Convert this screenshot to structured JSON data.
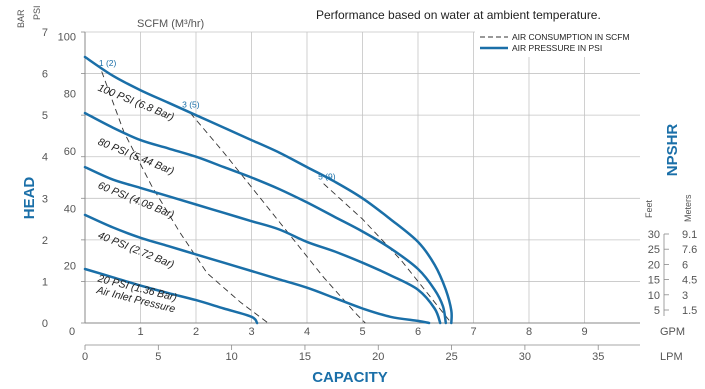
{
  "chart_data": {
    "type": "line",
    "note": "Performance based on water at ambient temperature.",
    "xlabel": "CAPACITY",
    "ylabel": "HEAD",
    "right_label": "NPSHR",
    "scfm_label": "SCFM (M³/hr)",
    "head_units": [
      "BAR",
      "PSI"
    ],
    "x_gpm": {
      "unit": "GPM",
      "range": [
        0,
        10
      ],
      "ticks": [
        "0",
        "1",
        "2",
        "3",
        "4",
        "5",
        "6",
        "7",
        "8",
        "9"
      ]
    },
    "x_lpm": {
      "unit": "LPM",
      "range": [
        0,
        37.85
      ],
      "ticks": [
        "0",
        "5",
        "10",
        "15",
        "20",
        "25",
        "30",
        "35"
      ]
    },
    "y_bar": {
      "unit": "BAR",
      "range": [
        0,
        7
      ],
      "ticks": [
        "0",
        "1",
        "2",
        "3",
        "4",
        "5",
        "6",
        "7"
      ]
    },
    "y_psi": {
      "unit": "PSI",
      "range": [
        0,
        101.5
      ],
      "ticks": [
        "20",
        "40",
        "60",
        "80",
        "100"
      ]
    },
    "npshr": {
      "headers": [
        "Feet",
        "Meters"
      ],
      "rows": [
        [
          "30",
          "9.1"
        ],
        [
          "25",
          "7.6"
        ],
        [
          "20",
          "6"
        ],
        [
          "15",
          "4.5"
        ],
        [
          "10",
          "3"
        ],
        [
          "5",
          "1.5"
        ]
      ]
    },
    "legend": [
      {
        "name": "AIR CONSUMPTION IN SCFM",
        "style": "dashed"
      },
      {
        "name": "AIR PRESSURE IN PSI",
        "style": "solid"
      }
    ],
    "series": [
      {
        "name": "100 PSI (6.8 Bar)",
        "points": [
          [
            0,
            6.4
          ],
          [
            0.5,
            5.95
          ],
          [
            1,
            5.6
          ],
          [
            1.5,
            5.3
          ],
          [
            2,
            5.0
          ],
          [
            2.5,
            4.7
          ],
          [
            3,
            4.4
          ],
          [
            3.5,
            4.1
          ],
          [
            4,
            3.75
          ],
          [
            4.5,
            3.4
          ],
          [
            5,
            3.0
          ],
          [
            5.5,
            2.5
          ],
          [
            6,
            1.95
          ],
          [
            6.3,
            1.4
          ],
          [
            6.5,
            0.8
          ],
          [
            6.6,
            0.3
          ],
          [
            6.6,
            0
          ]
        ]
      },
      {
        "name": "80 PSI (5.44 Bar)",
        "points": [
          [
            0,
            5.05
          ],
          [
            0.5,
            4.7
          ],
          [
            1,
            4.4
          ],
          [
            1.5,
            4.2
          ],
          [
            2,
            4.0
          ],
          [
            2.5,
            3.75
          ],
          [
            3,
            3.5
          ],
          [
            3.5,
            3.22
          ],
          [
            4,
            2.9
          ],
          [
            4.5,
            2.55
          ],
          [
            5,
            2.2
          ],
          [
            5.5,
            1.8
          ],
          [
            6,
            1.3
          ],
          [
            6.3,
            0.8
          ],
          [
            6.45,
            0.4
          ],
          [
            6.5,
            0
          ]
        ]
      },
      {
        "name": "60 PSI (4.08 Bar)",
        "points": [
          [
            0,
            3.75
          ],
          [
            0.5,
            3.45
          ],
          [
            1,
            3.25
          ],
          [
            1.5,
            3.05
          ],
          [
            2,
            2.85
          ],
          [
            2.5,
            2.65
          ],
          [
            3,
            2.45
          ],
          [
            3.5,
            2.25
          ],
          [
            4,
            1.95
          ],
          [
            4.5,
            1.72
          ],
          [
            5,
            1.45
          ],
          [
            5.5,
            1.15
          ],
          [
            6,
            0.8
          ],
          [
            6.3,
            0.35
          ],
          [
            6.4,
            0
          ]
        ]
      },
      {
        "name": "40 PSI (2.72 Bar)",
        "points": [
          [
            0,
            2.6
          ],
          [
            0.5,
            2.3
          ],
          [
            1,
            2.05
          ],
          [
            1.5,
            1.85
          ],
          [
            2,
            1.65
          ],
          [
            2.5,
            1.45
          ],
          [
            3,
            1.25
          ],
          [
            3.5,
            1.05
          ],
          [
            4,
            0.85
          ],
          [
            4.5,
            0.6
          ],
          [
            5,
            0.35
          ],
          [
            5.5,
            0.15
          ],
          [
            6,
            0.05
          ],
          [
            6.2,
            0
          ]
        ]
      },
      {
        "name": "20 PSI (1.36 Bar)",
        "points": [
          [
            0,
            1.3
          ],
          [
            0.5,
            1.1
          ],
          [
            1,
            0.9
          ],
          [
            1.5,
            0.72
          ],
          [
            2,
            0.55
          ],
          [
            2.5,
            0.35
          ],
          [
            3,
            0.15
          ],
          [
            3.1,
            0
          ]
        ]
      }
    ],
    "air_consumption": [
      {
        "name": "1 (2)",
        "points": [
          [
            0.3,
            6.05
          ],
          [
            0.7,
            4.6
          ],
          [
            1.2,
            3.3
          ],
          [
            1.7,
            2.2
          ],
          [
            2.2,
            1.2
          ],
          [
            2.8,
            0.5
          ],
          [
            3.3,
            0
          ]
        ]
      },
      {
        "name": "3 (5)",
        "points": [
          [
            1.9,
            5.05
          ],
          [
            2.5,
            4.1
          ],
          [
            3.1,
            3.1
          ],
          [
            3.7,
            2.1
          ],
          [
            4.3,
            1.1
          ],
          [
            4.9,
            0.2
          ],
          [
            5.05,
            0
          ]
        ]
      },
      {
        "name": "5 (9)",
        "points": [
          [
            4.3,
            3.35
          ],
          [
            5.0,
            2.5
          ],
          [
            5.7,
            1.5
          ],
          [
            6.3,
            0.5
          ],
          [
            6.6,
            0
          ]
        ]
      }
    ],
    "air_inlet_label": "Air Inlet Pressure"
  }
}
